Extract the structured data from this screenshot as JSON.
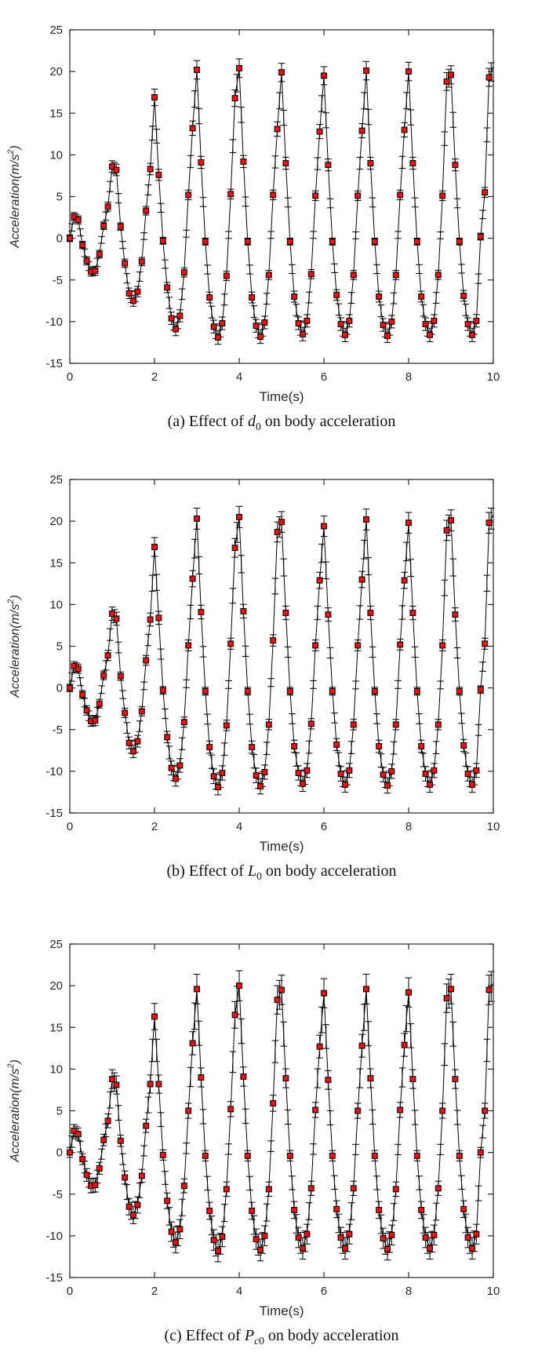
{
  "colors": {
    "background": "#ffffff",
    "axis": "#262626",
    "tick_label": "#262626",
    "line": "#000000",
    "error_bar": "#111111",
    "marker_fill": "#f80f0f",
    "marker_edge": "#000000"
  },
  "figures": [
    {
      "label": "a",
      "caption": {
        "pre": "(a) Effect of ",
        "sym": "d",
        "subi": "",
        "subn": "0",
        "post": " on body acceleration"
      }
    },
    {
      "label": "b",
      "caption": {
        "pre": "(b) Effect of ",
        "sym": "L",
        "subi": "",
        "subn": "0",
        "post": " on body acceleration"
      }
    },
    {
      "label": "c",
      "caption": {
        "pre": "(c) Effect of ",
        "sym": "P",
        "subi": "c",
        "subn": "0",
        "post": " on body acceleration"
      }
    }
  ],
  "chart_data": [
    {
      "type": "line",
      "title": "",
      "xlabel": "Time(s)",
      "ylabel": "Acceleration(m/s²)",
      "xlim": [
        0,
        10
      ],
      "ylim": [
        -15,
        25
      ],
      "xticks": [
        0,
        2,
        4,
        6,
        8,
        10
      ],
      "yticks": [
        -15,
        -10,
        -5,
        0,
        5,
        10,
        15,
        20,
        25
      ],
      "grid": false,
      "legend": null,
      "series": [
        {
          "name": "body acceleration (varying d0)",
          "marker": "red-square",
          "t_start": 0,
          "t_step": 0.1,
          "values": [
            0.0,
            2.6,
            2.2,
            -0.8,
            -2.7,
            -4.0,
            -3.9,
            -1.9,
            1.5,
            3.8,
            8.6,
            8.2,
            1.4,
            -3.0,
            -6.6,
            -7.5,
            -6.4,
            -2.8,
            3.3,
            8.3,
            16.9,
            7.6,
            -0.3,
            -5.9,
            -9.6,
            -10.9,
            -9.3,
            -4.1,
            5.2,
            13.2,
            20.2,
            9.1,
            -0.4,
            -7.1,
            -10.6,
            -11.9,
            -10.2,
            -4.5,
            5.3,
            16.8,
            20.4,
            9.2,
            -0.4,
            -7.1,
            -10.5,
            -11.8,
            -10.1,
            -4.4,
            5.2,
            13.1,
            19.9,
            9.0,
            -0.4,
            -7.0,
            -10.2,
            -11.5,
            -9.9,
            -4.3,
            5.1,
            12.8,
            19.5,
            8.8,
            -0.4,
            -6.8,
            -10.3,
            -11.6,
            -9.9,
            -4.4,
            5.1,
            12.9,
            20.1,
            9.0,
            -0.4,
            -7.0,
            -10.4,
            -11.7,
            -10.0,
            -4.4,
            5.2,
            13.0,
            20.0,
            9.0,
            -0.4,
            -7.0,
            -10.3,
            -11.6,
            -9.9,
            -4.4,
            5.1,
            18.8,
            19.6,
            8.8,
            -0.4,
            -6.9,
            -10.3,
            -11.6,
            -9.9,
            0.2,
            5.5,
            19.3,
            20.6
          ],
          "error_model": {
            "base": 0.4,
            "scale": 0.035,
            "note": "error bar half-height = base + scale*|value|; extra bare error ticks drawn at segment midpoints"
          }
        }
      ]
    },
    {
      "type": "line",
      "title": "",
      "xlabel": "Time(s)",
      "ylabel": "Acceleration(m/s²)",
      "xlim": [
        0,
        10
      ],
      "ylim": [
        -15,
        25
      ],
      "xticks": [
        0,
        2,
        4,
        6,
        8,
        10
      ],
      "yticks": [
        -15,
        -10,
        -5,
        0,
        5,
        10,
        15,
        20,
        25
      ],
      "grid": false,
      "legend": null,
      "series": [
        {
          "name": "body acceleration (varying L0)",
          "marker": "red-square",
          "t_start": 0,
          "t_step": 0.1,
          "values": [
            0.0,
            2.6,
            2.3,
            -0.8,
            -2.7,
            -4.0,
            -3.9,
            -1.9,
            1.5,
            3.9,
            8.9,
            8.3,
            1.4,
            -3.0,
            -6.6,
            -7.6,
            -6.4,
            -2.8,
            3.3,
            8.2,
            16.9,
            8.4,
            -0.3,
            -5.9,
            -9.6,
            -10.9,
            -9.3,
            -4.1,
            5.1,
            13.1,
            20.3,
            9.1,
            -0.4,
            -7.1,
            -10.6,
            -11.9,
            -10.2,
            -4.5,
            5.3,
            16.8,
            20.5,
            9.2,
            -0.4,
            -7.1,
            -10.5,
            -11.8,
            -10.1,
            -4.4,
            5.7,
            18.7,
            19.9,
            9.0,
            -0.4,
            -7.0,
            -10.2,
            -11.5,
            -9.9,
            -4.3,
            5.1,
            12.9,
            19.4,
            8.8,
            -0.4,
            -6.8,
            -10.3,
            -11.6,
            -9.9,
            -4.4,
            5.1,
            13.0,
            20.2,
            9.0,
            -0.4,
            -7.0,
            -10.4,
            -11.7,
            -10.0,
            -4.4,
            5.2,
            12.9,
            19.8,
            9.0,
            -0.4,
            -7.0,
            -10.3,
            -11.6,
            -9.9,
            -4.4,
            5.1,
            18.9,
            20.1,
            8.8,
            -0.4,
            -6.9,
            -10.3,
            -11.6,
            -9.9,
            -0.2,
            5.3,
            19.8,
            20.8
          ],
          "error_model": {
            "base": 0.45,
            "scale": 0.04,
            "note": "error bar half-height = base + scale*|value|; extra bare error ticks drawn at segment midpoints"
          }
        }
      ]
    },
    {
      "type": "line",
      "title": "",
      "xlabel": "Time(s)",
      "ylabel": "Acceleration(m/s²)",
      "xlim": [
        0,
        10
      ],
      "ylim": [
        -15,
        25
      ],
      "xticks": [
        0,
        2,
        4,
        6,
        8,
        10
      ],
      "yticks": [
        -15,
        -10,
        -5,
        0,
        5,
        10,
        15,
        20,
        25
      ],
      "grid": false,
      "legend": null,
      "series": [
        {
          "name": "body acceleration (varying Pc0)",
          "marker": "red-square",
          "t_start": 0,
          "t_step": 0.1,
          "values": [
            0.0,
            2.6,
            2.2,
            -0.8,
            -2.7,
            -4.0,
            -3.9,
            -1.9,
            1.5,
            3.8,
            8.8,
            8.1,
            1.4,
            -3.0,
            -6.5,
            -7.5,
            -6.3,
            -2.8,
            3.2,
            8.2,
            16.3,
            8.2,
            -0.3,
            -5.8,
            -9.5,
            -10.8,
            -9.2,
            -4.0,
            5.0,
            13.1,
            19.6,
            9.0,
            -0.4,
            -7.0,
            -10.5,
            -11.8,
            -10.1,
            -4.4,
            5.2,
            16.5,
            20.0,
            9.1,
            -0.4,
            -7.0,
            -10.4,
            -11.7,
            -10.0,
            -4.4,
            5.9,
            18.3,
            19.5,
            8.9,
            -0.4,
            -6.9,
            -10.2,
            -11.5,
            -9.8,
            -4.3,
            5.1,
            12.7,
            19.1,
            8.7,
            -0.4,
            -6.8,
            -10.2,
            -11.5,
            -9.8,
            -4.3,
            5.0,
            12.8,
            19.6,
            8.9,
            -0.4,
            -6.9,
            -10.3,
            -11.6,
            -9.9,
            -4.4,
            5.1,
            12.9,
            19.2,
            8.8,
            -0.4,
            -6.9,
            -10.2,
            -11.5,
            -9.9,
            -4.3,
            5.0,
            18.5,
            19.6,
            8.8,
            -0.4,
            -6.8,
            -10.2,
            -11.5,
            -9.8,
            0.0,
            5.0,
            19.5,
            20.3
          ],
          "error_model": {
            "base": 0.6,
            "scale": 0.06,
            "note": "error bar half-height = base + scale*|value|; extra bare error ticks drawn at segment midpoints"
          }
        }
      ]
    }
  ]
}
